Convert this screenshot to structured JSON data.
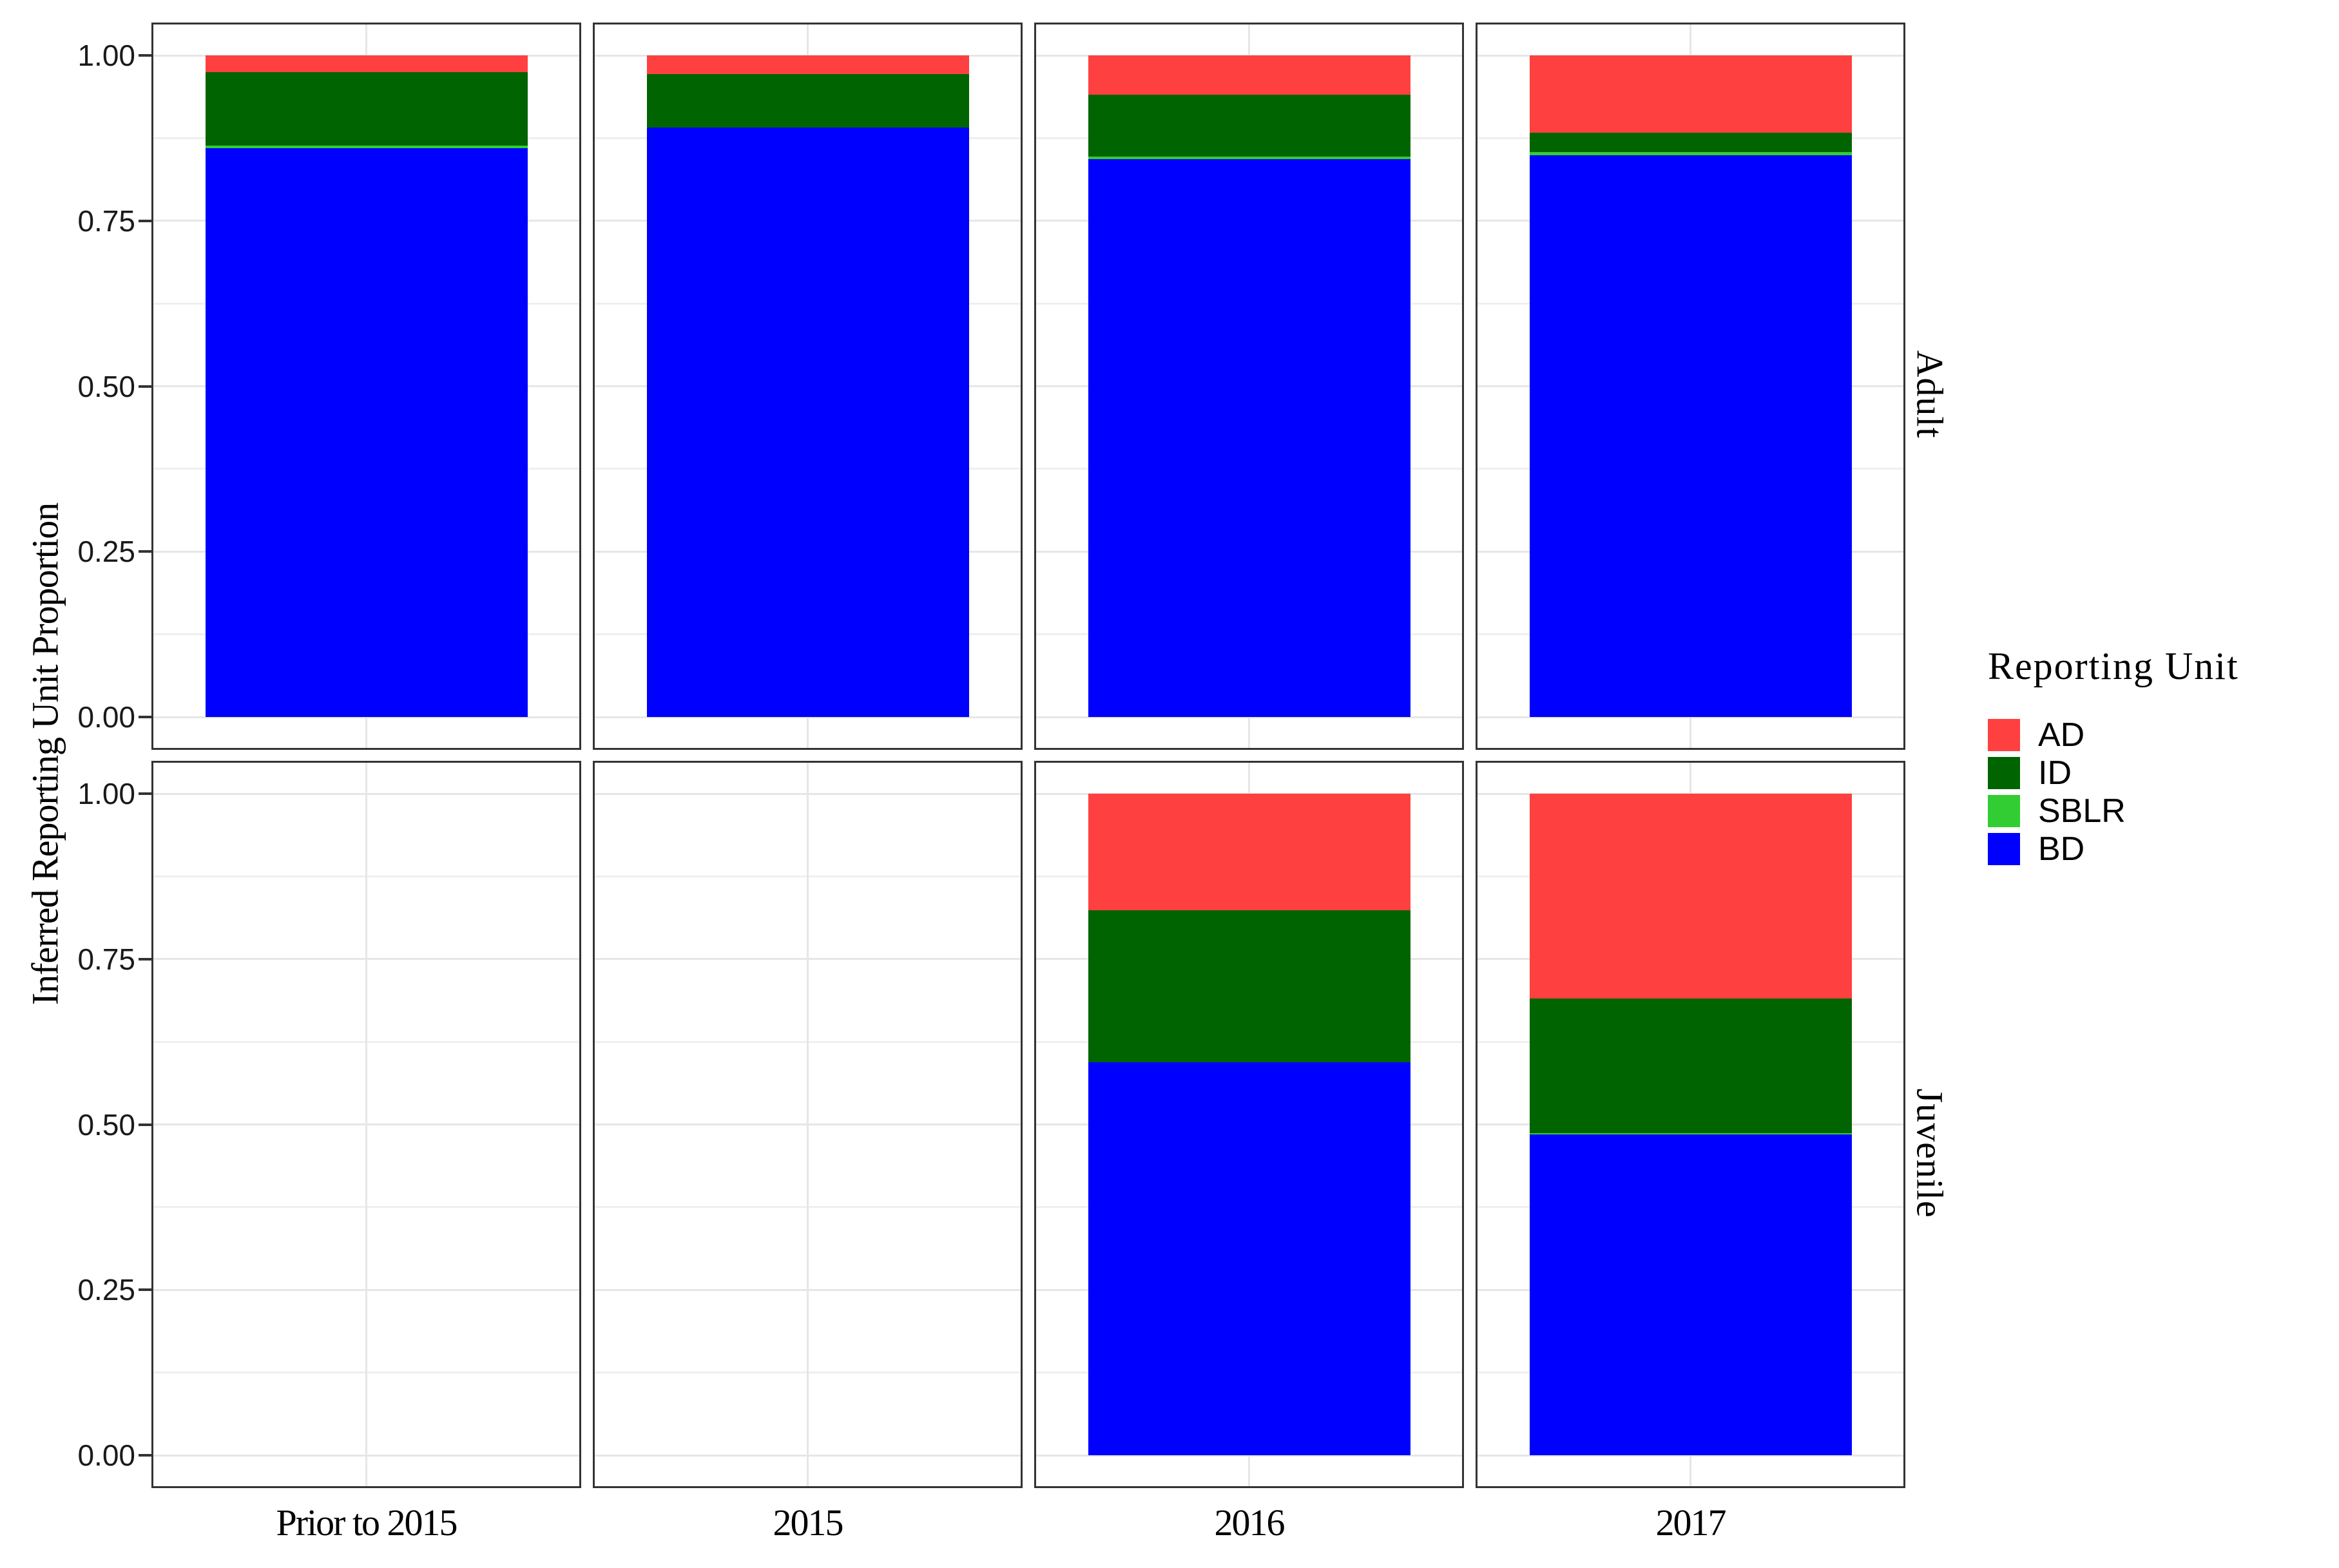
{
  "chart_data": {
    "type": "bar",
    "stacked": true,
    "orientation": "vertical",
    "y_title": "Inferred Reporting Unit Proportion",
    "legend_title": "Reporting Unit",
    "legend_position": "right",
    "facet_rows": [
      "Adult",
      "Juvenile"
    ],
    "categories": [
      "Prior to 2015",
      "2015",
      "2016",
      "2017"
    ],
    "ylim": [
      0,
      1
    ],
    "grid": "major and minor horizontal, center vertical",
    "y_ticks": [
      {
        "value": 1.0,
        "label": "1.00"
      },
      {
        "value": 0.75,
        "label": "0.75"
      },
      {
        "value": 0.5,
        "label": "0.50"
      },
      {
        "value": 0.25,
        "label": "0.25"
      },
      {
        "value": 0.0,
        "label": "0.00"
      }
    ],
    "y_minor_ticks": [
      0.125,
      0.375,
      0.625,
      0.875
    ],
    "series": [
      {
        "name": "AD",
        "color": "#FF4040",
        "values": {
          "Adult": [
            0.025,
            0.028,
            0.059,
            0.117
          ],
          "Juvenile": [
            0,
            0,
            0.176,
            0.31
          ]
        }
      },
      {
        "name": "ID",
        "color": "#006400",
        "values": {
          "Adult": [
            0.111,
            0.081,
            0.094,
            0.029
          ],
          "Juvenile": [
            0,
            0,
            0.23,
            0.203
          ]
        }
      },
      {
        "name": "SBLR",
        "color": "#32CD32",
        "values": {
          "Adult": [
            0.004,
            0.0,
            0.004,
            0.005
          ],
          "Juvenile": [
            0,
            0,
            0.0,
            0.002
          ]
        }
      },
      {
        "name": "BD",
        "color": "#0000FF",
        "values": {
          "Adult": [
            0.86,
            0.891,
            0.843,
            0.849
          ],
          "Juvenile": [
            0,
            0,
            0.594,
            0.485
          ]
        }
      }
    ]
  }
}
